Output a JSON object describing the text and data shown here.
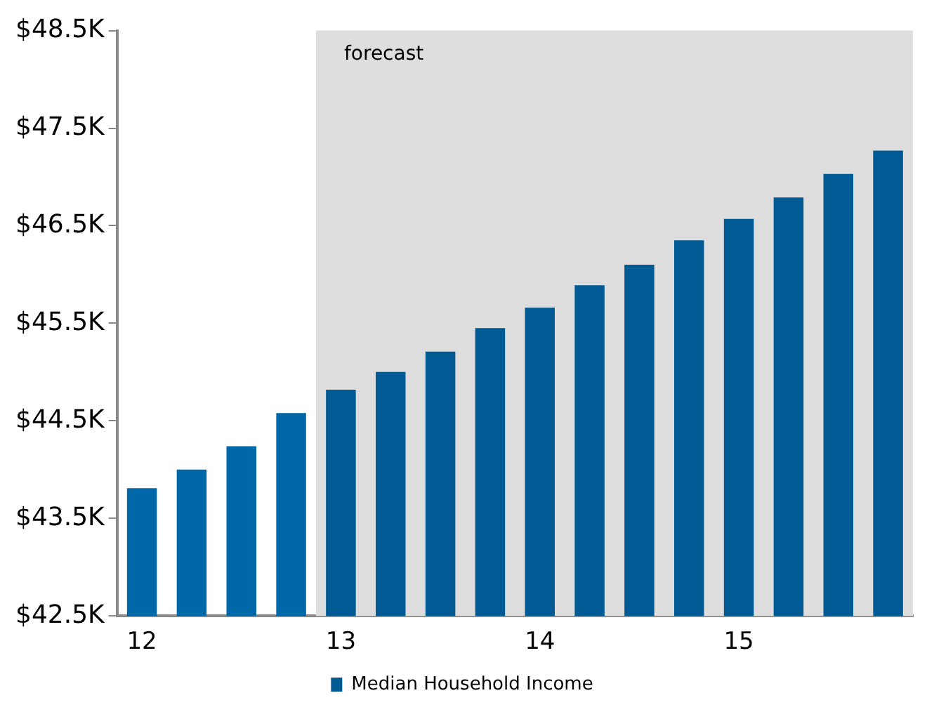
{
  "chart_data": {
    "type": "bar",
    "categories": [
      "12",
      null,
      null,
      null,
      "13",
      null,
      null,
      null,
      "14",
      null,
      null,
      null,
      "15",
      null,
      null,
      null
    ],
    "series": [
      {
        "name": "Median Household Income",
        "color": "#005a94",
        "colors": [
          "#0068a8",
          "#0068a8",
          "#0068a8",
          "#0068a8",
          "#005a94",
          "#005a94",
          "#005a94",
          "#005a94",
          "#005a94",
          "#005a94",
          "#005a94",
          "#005a94",
          "#005a94",
          "#005a94",
          "#005a94",
          "#005a94"
        ],
        "values": [
          43.81,
          44.0,
          44.24,
          44.58,
          44.82,
          45.0,
          45.21,
          45.45,
          45.66,
          45.89,
          46.1,
          46.35,
          46.57,
          46.79,
          47.03,
          47.27
        ]
      }
    ],
    "ylim": [
      42.5,
      48.5
    ],
    "yticks": [
      {
        "value": 42.5,
        "label": "$42.5K"
      },
      {
        "value": 43.5,
        "label": "$43.5K"
      },
      {
        "value": 44.5,
        "label": "$44.5K"
      },
      {
        "value": 45.5,
        "label": "$45.5K"
      },
      {
        "value": 46.5,
        "label": "$46.5K"
      },
      {
        "value": 47.5,
        "label": "$47.5K"
      },
      {
        "value": 48.5,
        "label": "$48.5K"
      }
    ],
    "annotations": [
      "forecast"
    ],
    "grid": false,
    "legend": "bottom"
  }
}
